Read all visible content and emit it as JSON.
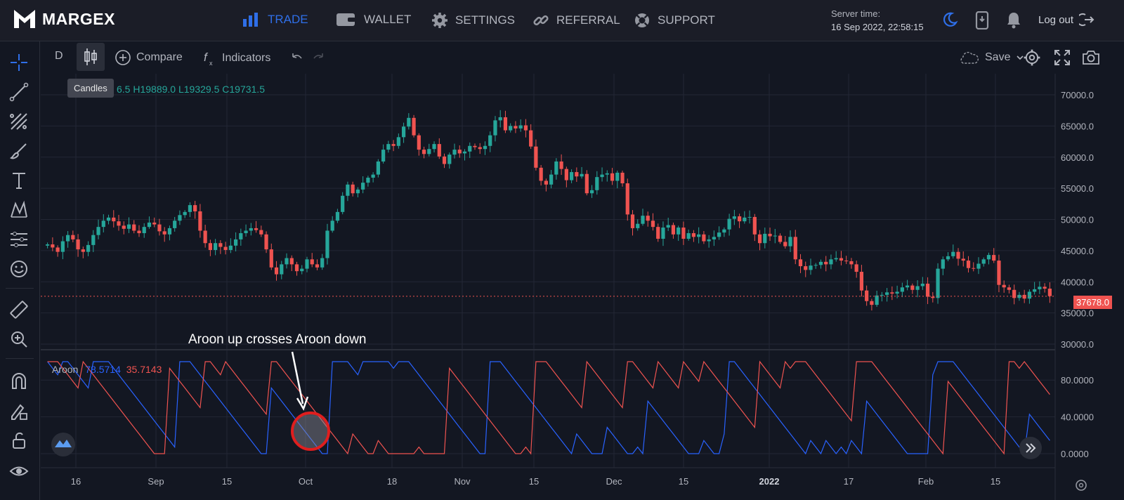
{
  "brand": {
    "name": "MARGEX"
  },
  "nav": [
    {
      "label": "TRADE",
      "icon": "bar-chart-icon",
      "active": true
    },
    {
      "label": "WALLET",
      "icon": "wallet-icon"
    },
    {
      "label": "SETTINGS",
      "icon": "gear-icon"
    },
    {
      "label": "REFERRAL",
      "icon": "link-icon"
    },
    {
      "label": "SUPPORT",
      "icon": "lifebuoy-icon"
    }
  ],
  "server": {
    "label": "Server time:",
    "value": "16 Sep 2022, 22:58:15"
  },
  "header_actions": {
    "logout": "Log out"
  },
  "toolbar": {
    "interval": "D",
    "compare": "Compare",
    "indicators": "Indicators",
    "save": "Save",
    "tooltip": "Candles"
  },
  "ohlc": {
    "open_partial": "6.5",
    "high": "H19889.0",
    "low": "L19329.5",
    "close": "C19731.5"
  },
  "price_axis": [
    "70000.0",
    "65000.0",
    "60000.0",
    "55000.0",
    "50000.0",
    "45000.0",
    "40000.0",
    "35000.0",
    "30000.0"
  ],
  "last_price": "37678.0",
  "aroon": {
    "name": "Aroon",
    "up": "78.5714",
    "down": "35.7143",
    "axis": [
      "80.0000",
      "40.0000",
      "0.0000"
    ]
  },
  "time_axis": [
    "16",
    "Sep",
    "15",
    "Oct",
    "18",
    "Nov",
    "15",
    "Dec",
    "15",
    "2022",
    "17",
    "Feb",
    "15"
  ],
  "annotation": "Aroon up crosses Aroon down",
  "colors": {
    "up": "#26a69a",
    "down": "#ef5350",
    "aroon_up": "#2962ff",
    "aroon_down": "#ef5350",
    "accent": "#2f6fe8"
  },
  "chart_data": {
    "type": "candlestick",
    "ylim": [
      30000,
      72000
    ],
    "closes": [
      46000,
      45500,
      44800,
      46500,
      47500,
      46800,
      45200,
      44800,
      45900,
      47500,
      48800,
      49800,
      50300,
      49700,
      49000,
      48500,
      49200,
      48200,
      47800,
      48800,
      49500,
      49200,
      48100,
      47600,
      48600,
      49800,
      50700,
      51200,
      52300,
      51300,
      48200,
      46200,
      45100,
      46200,
      45600,
      45100,
      45800,
      46800,
      47800,
      48200,
      48600,
      48300,
      47600,
      45200,
      42300,
      41200,
      42800,
      43800,
      42800,
      41700,
      42100,
      43600,
      42800,
      42300,
      43800,
      48200,
      49800,
      51200,
      53800,
      55600,
      54200,
      54800,
      55900,
      56700,
      57200,
      59300,
      61200,
      62100,
      61800,
      63200,
      64900,
      66300,
      63500,
      61200,
      60500,
      61300,
      62100,
      60100,
      58900,
      60400,
      61200,
      60600,
      60900,
      61800,
      61600,
      61300,
      61800,
      63500,
      65900,
      66400,
      64300,
      65000,
      64600,
      65100,
      64300,
      61700,
      58300,
      56200,
      55600,
      57200,
      59300,
      58100,
      56300,
      57600,
      56900,
      57300,
      54200,
      54700,
      56800,
      57200,
      57400,
      56200,
      57500,
      55800,
      50800,
      48600,
      49300,
      50600,
      49800,
      48800,
      46900,
      48700,
      49100,
      47600,
      48700,
      46900,
      47800,
      47200,
      47600,
      46500,
      46800,
      47200,
      47900,
      48400,
      50100,
      50500,
      49700,
      50300,
      50400,
      47600,
      46200,
      47700,
      47300,
      47400,
      46400,
      45700,
      47200,
      43600,
      42500,
      41900,
      42600,
      42700,
      43200,
      42800,
      43600,
      43800,
      43400,
      43300,
      42800,
      41600,
      38600,
      36900,
      36300,
      37800,
      37900,
      38300,
      38100,
      38400,
      39100,
      39400,
      38700,
      39300,
      39700,
      37600,
      37400,
      42100,
      43600,
      44100,
      44800,
      43700,
      43400,
      42200,
      42100,
      42900,
      43600,
      44300,
      43400,
      39500,
      39100,
      38700,
      37400,
      37900,
      37300,
      38400,
      38800,
      39200,
      38900,
      37700
    ]
  }
}
